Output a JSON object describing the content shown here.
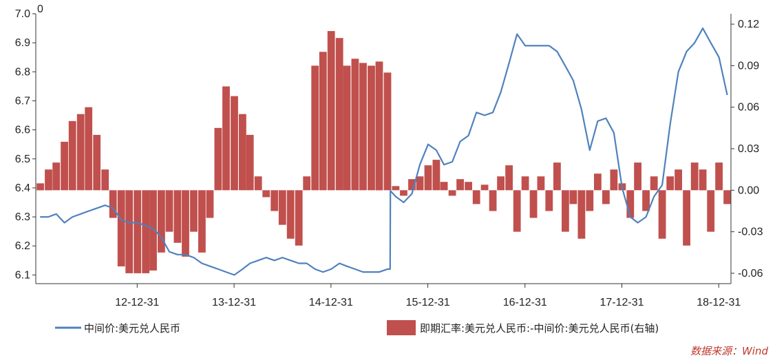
{
  "chart_data": {
    "type": "bar+line",
    "x_tick_labels": [
      "12-12-31",
      "13-12-31",
      "14-12-31",
      "15-12-31",
      "16-12-31",
      "17-12-31",
      "18-12-31"
    ],
    "y_left": {
      "min": 6.07,
      "max": 7.0,
      "ticks": [
        "6.1",
        "6.2",
        "6.3",
        "6.4",
        "6.5",
        "6.6",
        "6.7",
        "6.8",
        "6.9",
        "7.0"
      ],
      "top_note": "0"
    },
    "y_right": {
      "min": -0.0675,
      "max": 0.1275,
      "ticks": [
        "0.12",
        "0.09",
        "0.06",
        "0.03",
        "0.00",
        "-0.03",
        "-0.06"
      ]
    },
    "colors": {
      "line": "#4f81bd",
      "bar": "#c0504d",
      "axis": "#333333"
    },
    "series": [
      {
        "name": "中间价:美元兑人民币",
        "kind": "line",
        "axis": "left",
        "x": [
          "2011-12-31",
          "2012-01-31",
          "2012-03-01",
          "2012-04-01",
          "2012-05-01",
          "2012-06-01",
          "2012-07-01",
          "2012-08-01",
          "2012-09-01",
          "2012-10-01",
          "2012-11-01",
          "2012-12-01",
          "2013-01-01",
          "2013-02-01",
          "2013-03-01",
          "2013-04-01",
          "2013-05-01",
          "2013-06-01",
          "2013-07-01",
          "2013-08-01",
          "2013-09-01",
          "2013-10-01",
          "2013-11-01",
          "2013-12-01",
          "2014-01-01",
          "2014-02-01",
          "2014-03-01",
          "2014-04-01",
          "2014-05-01",
          "2014-06-01",
          "2014-07-01",
          "2014-08-01",
          "2014-09-01",
          "2014-10-01",
          "2014-11-01",
          "2014-12-01",
          "2015-01-01",
          "2015-02-01",
          "2015-03-01",
          "2015-04-01",
          "2015-05-01",
          "2015-06-01",
          "2015-07-01",
          "2015-08-01",
          "2015-08-11",
          "2015-08-12",
          "2015-09-01",
          "2015-10-01",
          "2015-11-01",
          "2015-12-01",
          "2016-01-01",
          "2016-02-01",
          "2016-03-01",
          "2016-04-01",
          "2016-05-01",
          "2016-06-01",
          "2016-07-01",
          "2016-08-01",
          "2016-09-01",
          "2016-10-01",
          "2016-11-01",
          "2016-12-01",
          "2017-01-01",
          "2017-02-01",
          "2017-03-01",
          "2017-04-01",
          "2017-05-01",
          "2017-06-01",
          "2017-07-01",
          "2017-08-01",
          "2017-09-01",
          "2017-10-01",
          "2017-11-01",
          "2017-12-01",
          "2018-01-01",
          "2018-02-01",
          "2018-03-01",
          "2018-04-01",
          "2018-05-01",
          "2018-06-01",
          "2018-07-01",
          "2018-08-01",
          "2018-09-01",
          "2018-10-01",
          "2018-11-01",
          "2018-12-01",
          "2019-01-01",
          "2019-02-01"
        ],
        "values": [
          6.3,
          6.3,
          6.31,
          6.28,
          6.3,
          6.31,
          6.32,
          6.33,
          6.34,
          6.33,
          6.29,
          6.28,
          6.28,
          6.27,
          6.26,
          6.23,
          6.18,
          6.17,
          6.17,
          6.16,
          6.14,
          6.13,
          6.12,
          6.11,
          6.1,
          6.12,
          6.14,
          6.15,
          6.16,
          6.15,
          6.16,
          6.15,
          6.14,
          6.14,
          6.12,
          6.11,
          6.12,
          6.14,
          6.13,
          6.12,
          6.11,
          6.11,
          6.11,
          6.12,
          6.12,
          6.39,
          6.37,
          6.35,
          6.38,
          6.48,
          6.55,
          6.53,
          6.48,
          6.49,
          6.56,
          6.58,
          6.66,
          6.65,
          6.66,
          6.73,
          6.83,
          6.93,
          6.89,
          6.89,
          6.89,
          6.89,
          6.87,
          6.82,
          6.77,
          6.67,
          6.53,
          6.63,
          6.64,
          6.59,
          6.4,
          6.3,
          6.28,
          6.3,
          6.37,
          6.41,
          6.62,
          6.8,
          6.87,
          6.9,
          6.95,
          6.9,
          6.85,
          6.72
        ]
      },
      {
        "name": "即期汇率:美元兑人民币:-中间价:美元兑人民币(右轴)",
        "kind": "bar",
        "axis": "right",
        "x": [
          "2012-01-01",
          "2012-02-01",
          "2012-03-01",
          "2012-04-01",
          "2012-05-01",
          "2012-06-01",
          "2012-07-01",
          "2012-08-01",
          "2012-09-01",
          "2012-10-01",
          "2012-11-01",
          "2012-12-01",
          "2013-01-01",
          "2013-02-01",
          "2013-03-01",
          "2013-04-01",
          "2013-05-01",
          "2013-06-01",
          "2013-07-01",
          "2013-08-01",
          "2013-09-01",
          "2013-10-01",
          "2013-11-01",
          "2013-12-01",
          "2014-01-01",
          "2014-02-01",
          "2014-03-01",
          "2014-04-01",
          "2014-05-01",
          "2014-06-01",
          "2014-07-01",
          "2014-08-01",
          "2014-09-01",
          "2014-10-01",
          "2014-11-01",
          "2014-12-01",
          "2015-01-01",
          "2015-02-01",
          "2015-03-01",
          "2015-04-01",
          "2015-05-01",
          "2015-06-01",
          "2015-07-01",
          "2015-08-01",
          "2015-09-01",
          "2015-10-01",
          "2015-11-01",
          "2015-12-01",
          "2016-01-01",
          "2016-02-01",
          "2016-03-01",
          "2016-04-01",
          "2016-05-01",
          "2016-06-01",
          "2016-07-01",
          "2016-08-01",
          "2016-09-01",
          "2016-10-01",
          "2016-11-01",
          "2016-12-01",
          "2017-01-01",
          "2017-02-01",
          "2017-03-01",
          "2017-04-01",
          "2017-05-01",
          "2017-06-01",
          "2017-07-01",
          "2017-08-01",
          "2017-09-01",
          "2017-10-01",
          "2017-11-01",
          "2017-12-01",
          "2018-01-01",
          "2018-02-01",
          "2018-03-01",
          "2018-04-01",
          "2018-05-01",
          "2018-06-01",
          "2018-07-01",
          "2018-08-01",
          "2018-09-01",
          "2018-10-01",
          "2018-11-01",
          "2018-12-01",
          "2019-01-01",
          "2019-02-01"
        ],
        "values": [
          0.005,
          0.015,
          0.02,
          0.035,
          0.05,
          0.055,
          0.06,
          0.04,
          0.015,
          -0.02,
          -0.055,
          -0.06,
          -0.06,
          -0.06,
          -0.058,
          -0.045,
          -0.03,
          -0.038,
          -0.048,
          -0.03,
          -0.045,
          -0.02,
          0.045,
          0.075,
          0.068,
          0.055,
          0.04,
          0.01,
          -0.005,
          -0.015,
          -0.025,
          -0.035,
          -0.04,
          0.01,
          0.09,
          0.1,
          0.115,
          0.11,
          0.09,
          0.095,
          0.092,
          0.09,
          0.093,
          0.085,
          0.003,
          -0.004,
          0.008,
          0.01,
          0.018,
          0.022,
          0.006,
          -0.004,
          0.008,
          0.006,
          -0.01,
          0.004,
          -0.015,
          0.01,
          0.018,
          -0.03,
          0.01,
          -0.02,
          0.01,
          -0.015,
          0.02,
          -0.03,
          -0.01,
          -0.035,
          -0.015,
          0.012,
          -0.01,
          0.015,
          0.005,
          -0.02,
          0.02,
          -0.015,
          0.01,
          -0.035,
          0.01,
          0.015,
          -0.04,
          0.02,
          0.015,
          -0.03,
          0.02,
          -0.01
        ]
      }
    ]
  },
  "legend": {
    "line_label": "中间价:美元兑人民币",
    "bar_label": "即期汇率:美元兑人民币:-中间价:美元兑人民币(右轴)"
  },
  "source": "数据来源：Wind"
}
